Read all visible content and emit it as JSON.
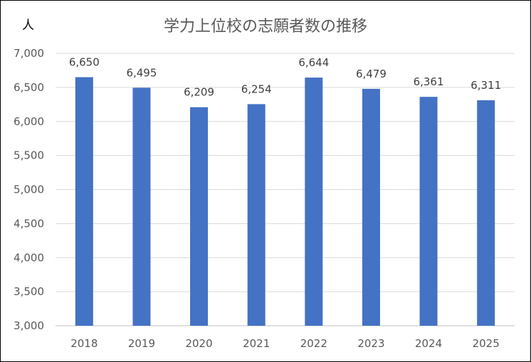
{
  "chart_data": {
    "type": "bar",
    "title": "学力上位校の志願者数の推移",
    "ylabel": "人",
    "xlabel": "",
    "categories": [
      "2018",
      "2019",
      "2020",
      "2021",
      "2022",
      "2023",
      "2024",
      "2025"
    ],
    "values": [
      6650,
      6495,
      6209,
      6254,
      6644,
      6479,
      6361,
      6311
    ],
    "value_labels": [
      "6,650",
      "6,495",
      "6,209",
      "6,254",
      "6,644",
      "6,479",
      "6,361",
      "6,311"
    ],
    "ylim": [
      3000,
      7000
    ],
    "y_ticks": [
      3000,
      3500,
      4000,
      4500,
      5000,
      5500,
      6000,
      6500,
      7000
    ],
    "y_tick_labels": [
      "3,000",
      "3,500",
      "4,000",
      "4,500",
      "5,000",
      "5,500",
      "6,000",
      "6,500",
      "7,000"
    ],
    "grid": true,
    "legend": "none",
    "colors": {
      "bar": "#4472C4",
      "grid": "#D9D9D9",
      "axis": "#BFBFBF"
    }
  }
}
